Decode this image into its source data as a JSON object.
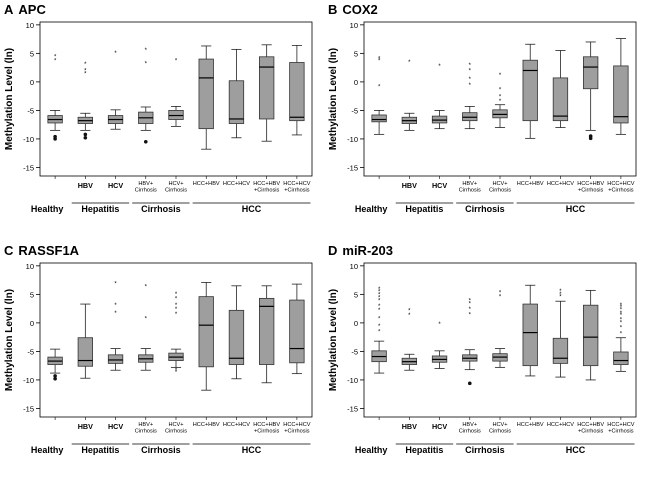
{
  "figure": {
    "shared": {
      "ylabel": "Methylation Level (ln)",
      "yticks": [
        10,
        5,
        0,
        -5,
        -10,
        -15
      ],
      "ylim": [
        -16.5,
        10.5
      ],
      "categories": [
        "",
        "HBV",
        "HCV",
        "HBV+\nCirrhosis",
        "HCV+\nCirrhosis",
        "HCC+HBV",
        "HCC+HCV",
        "HCC+HBV\n+Cirrhosis",
        "HCC+HCV\n+Cirrhosis"
      ],
      "groups": [
        {
          "label": "Healthy",
          "from": 0,
          "to": 0
        },
        {
          "label": "Hepatitis",
          "from": 1,
          "to": 2
        },
        {
          "label": "Cirrhosis",
          "from": 3,
          "to": 4
        },
        {
          "label": "HCC",
          "from": 5,
          "to": 8
        }
      ]
    }
  },
  "chart_data": [
    {
      "type": "box",
      "panel": "A",
      "title": "APC",
      "boxes": [
        {
          "min": -8.5,
          "q1": -7.2,
          "median": -6.6,
          "q3": -5.9,
          "max": -5.0,
          "outliers": [
            4.5,
            3.8,
            -9.6,
            -10.0
          ]
        },
        {
          "min": -8.5,
          "q1": -7.3,
          "median": -6.8,
          "q3": -6.2,
          "max": -5.5,
          "outliers": [
            3.2,
            2.0,
            1.5,
            -9.2,
            -9.8
          ]
        },
        {
          "min": -8.3,
          "q1": -7.3,
          "median": -6.6,
          "q3": -5.9,
          "max": -4.9,
          "outliers": [
            5.1
          ]
        },
        {
          "min": -8.5,
          "q1": -7.3,
          "median": -6.3,
          "q3": -5.3,
          "max": -4.4,
          "outliers": [
            5.6,
            3.3,
            -10.5
          ]
        },
        {
          "min": -7.8,
          "q1": -6.6,
          "median": -5.9,
          "q3": -5.0,
          "max": -4.3,
          "outliers": [
            3.8
          ]
        },
        {
          "min": -11.8,
          "q1": -8.2,
          "median": 0.7,
          "q3": 4.0,
          "max": 6.3,
          "outliers": []
        },
        {
          "min": -9.8,
          "q1": -7.3,
          "median": -6.5,
          "q3": 0.2,
          "max": 5.7,
          "outliers": []
        },
        {
          "min": -10.4,
          "q1": -6.5,
          "median": 2.6,
          "q3": 4.4,
          "max": 6.5,
          "outliers": []
        },
        {
          "min": -9.3,
          "q1": -6.8,
          "median": -6.2,
          "q3": 3.4,
          "max": 6.4,
          "outliers": []
        }
      ]
    },
    {
      "type": "box",
      "panel": "B",
      "title": "COX2",
      "boxes": [
        {
          "min": -9.2,
          "q1": -7.0,
          "median": -6.6,
          "q3": -5.8,
          "max": -5.0,
          "outliers": [
            4.1,
            3.8,
            -0.8
          ]
        },
        {
          "min": -8.5,
          "q1": -7.3,
          "median": -6.8,
          "q3": -6.2,
          "max": -5.5,
          "outliers": [
            3.5
          ]
        },
        {
          "min": -8.2,
          "q1": -7.2,
          "median": -6.7,
          "q3": -6.0,
          "max": -5.0,
          "outliers": [
            2.8
          ]
        },
        {
          "min": -8.2,
          "q1": -6.8,
          "median": -6.2,
          "q3": -5.4,
          "max": -4.3,
          "outliers": [
            3.0,
            2.0,
            0.5,
            -0.5
          ]
        },
        {
          "min": -8.0,
          "q1": -6.3,
          "median": -5.7,
          "q3": -4.9,
          "max": -4.0,
          "outliers": [
            1.2,
            -1.3,
            -2.5,
            -3.3
          ]
        },
        {
          "min": -9.9,
          "q1": -6.8,
          "median": 2.0,
          "q3": 3.8,
          "max": 6.6,
          "outliers": []
        },
        {
          "min": -8.0,
          "q1": -6.8,
          "median": -6.0,
          "q3": 0.7,
          "max": 5.5,
          "outliers": []
        },
        {
          "min": -8.5,
          "q1": -1.2,
          "median": 2.6,
          "q3": 4.4,
          "max": 7.0,
          "outliers": [
            -9.5,
            -9.9
          ]
        },
        {
          "min": -9.2,
          "q1": -7.2,
          "median": -6.1,
          "q3": 2.8,
          "max": 7.6,
          "outliers": []
        }
      ]
    },
    {
      "type": "box",
      "panel": "C",
      "title": "RASSF1A",
      "boxes": [
        {
          "min": -8.8,
          "q1": -7.3,
          "median": -6.7,
          "q3": -6.0,
          "max": -4.6,
          "outliers": [
            -9.3,
            -9.8
          ]
        },
        {
          "min": -9.7,
          "q1": -7.6,
          "median": -6.6,
          "q3": -2.6,
          "max": 3.3,
          "outliers": []
        },
        {
          "min": -8.3,
          "q1": -7.1,
          "median": -6.5,
          "q3": -5.6,
          "max": -4.5,
          "outliers": [
            6.9,
            3.2,
            1.8
          ]
        },
        {
          "min": -8.3,
          "q1": -6.9,
          "median": -6.3,
          "q3": -5.6,
          "max": -4.5,
          "outliers": [
            6.4,
            0.8
          ]
        },
        {
          "min": -7.8,
          "q1": -6.6,
          "median": -6.0,
          "q3": -5.3,
          "max": -4.6,
          "outliers": [
            5.1,
            4.3,
            3.2,
            2.5,
            1.6,
            -8.2,
            -8.6
          ]
        },
        {
          "min": -11.8,
          "q1": -7.7,
          "median": -0.4,
          "q3": 4.6,
          "max": 7.1,
          "outliers": []
        },
        {
          "min": -9.8,
          "q1": -7.3,
          "median": -6.2,
          "q3": 2.2,
          "max": 6.5,
          "outliers": []
        },
        {
          "min": -10.5,
          "q1": -7.3,
          "median": 2.9,
          "q3": 4.3,
          "max": 6.5,
          "outliers": []
        },
        {
          "min": -8.9,
          "q1": -7.0,
          "median": -4.5,
          "q3": 4.0,
          "max": 6.8,
          "outliers": []
        }
      ]
    },
    {
      "type": "box",
      "panel": "D",
      "title": "miR-203",
      "boxes": [
        {
          "min": -8.8,
          "q1": -6.8,
          "median": -5.9,
          "q3": -4.9,
          "max": -3.2,
          "outliers": [
            6.0,
            5.5,
            5.0,
            4.5,
            4.0,
            3.0,
            2.3,
            0.8,
            -0.5,
            -1.5
          ]
        },
        {
          "min": -8.3,
          "q1": -7.3,
          "median": -6.8,
          "q3": -6.2,
          "max": -5.5,
          "outliers": [
            2.2,
            1.4
          ]
        },
        {
          "min": -8.0,
          "q1": -6.9,
          "median": -6.4,
          "q3": -5.8,
          "max": -4.9,
          "outliers": [
            -0.2
          ]
        },
        {
          "min": -8.2,
          "q1": -6.7,
          "median": -6.2,
          "q3": -5.6,
          "max": -4.7,
          "outliers": [
            4.0,
            3.4,
            2.5,
            1.5,
            -10.6
          ]
        },
        {
          "min": -7.8,
          "q1": -6.7,
          "median": -6.0,
          "q3": -5.4,
          "max": -4.5,
          "outliers": [
            5.4,
            4.7
          ]
        },
        {
          "min": -9.3,
          "q1": -7.5,
          "median": -1.7,
          "q3": 3.3,
          "max": 6.6,
          "outliers": []
        },
        {
          "min": -9.5,
          "q1": -7.1,
          "median": -6.2,
          "q3": -2.7,
          "max": 3.8,
          "outliers": [
            5.6,
            5.1,
            4.7
          ]
        },
        {
          "min": -10.0,
          "q1": -7.5,
          "median": -2.5,
          "q3": 3.1,
          "max": 5.7,
          "outliers": []
        },
        {
          "min": -8.5,
          "q1": -7.3,
          "median": -6.6,
          "q3": -5.1,
          "max": -2.6,
          "outliers": [
            3.2,
            2.8,
            2.4,
            1.8,
            1.4,
            0.6,
            0.1,
            -0.8,
            -1.8
          ]
        }
      ]
    }
  ]
}
